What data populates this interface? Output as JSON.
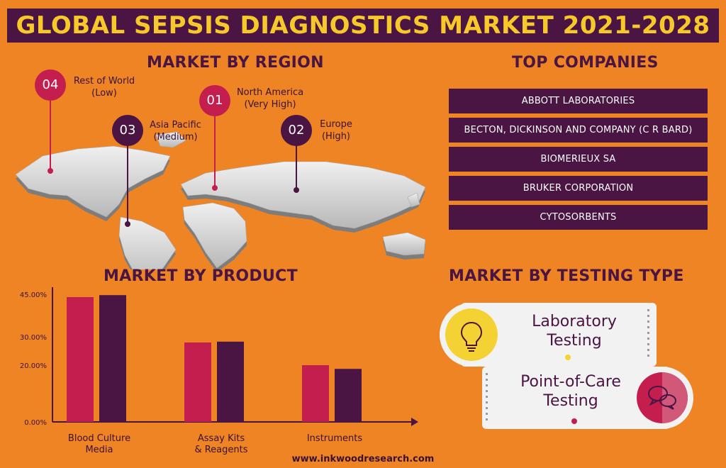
{
  "title": "GLOBAL SEPSIS DIAGNOSTICS MARKET 2021-2028",
  "region_section": {
    "heading": "MARKET BY REGION",
    "regions": [
      {
        "num": "04",
        "name": "Rest of World",
        "level": "(Low)",
        "color": "#c41e4f"
      },
      {
        "num": "03",
        "name": "Asia Pacific",
        "level": "(Medium)",
        "color": "#4a1443"
      },
      {
        "num": "01",
        "name": "North America",
        "level": "(Very High)",
        "color": "#c41e4f"
      },
      {
        "num": "02",
        "name": "Europe",
        "level": "(High)",
        "color": "#4a1443"
      }
    ]
  },
  "companies_section": {
    "heading": "TOP COMPANIES",
    "items": [
      "ABBOTT LABORATORIES",
      "BECTON, DICKINSON AND COMPANY (C R BARD)",
      "BIOMERIEUX SA",
      "BRUKER CORPORATION",
      "CYTOSORBENTS"
    ]
  },
  "product_section": {
    "heading": "MARKET BY PRODUCT",
    "category_labels": [
      [
        "Blood Culture",
        "Media"
      ],
      [
        "Assay Kits",
        "& Reagents"
      ],
      [
        "Instruments",
        ""
      ]
    ]
  },
  "chart_data": {
    "type": "bar",
    "categories": [
      "Blood Culture Media",
      "Assay Kits & Reagents",
      "Instruments"
    ],
    "series": [
      {
        "values": [
          44.0,
          28.0,
          20.0
        ],
        "color": "#c41e4f"
      },
      {
        "values": [
          44.7,
          28.3,
          18.7
        ],
        "color": "#4a1443"
      }
    ],
    "yticks": [
      0,
      20,
      30,
      45
    ],
    "ytick_labels": [
      "0.00%",
      "20.00%",
      "30.00%",
      "45.00%"
    ],
    "ylim": [
      0,
      45
    ],
    "xlabel": "",
    "ylabel": ""
  },
  "testing_section": {
    "heading": "MARKET BY TESTING TYPE",
    "types": [
      {
        "line1": "Laboratory",
        "line2": "Testing",
        "icon": "lightbulb-icon",
        "icon_color": "#f5d234",
        "dot_color": "#f5d234"
      },
      {
        "line1": "Point-of-Care",
        "line2": "Testing",
        "icon": "chat-bubbles-icon",
        "icon_color": "#c41e4f",
        "dot_color": "#c41e4f"
      }
    ]
  },
  "footer": "www.inkwoodresearch.com"
}
